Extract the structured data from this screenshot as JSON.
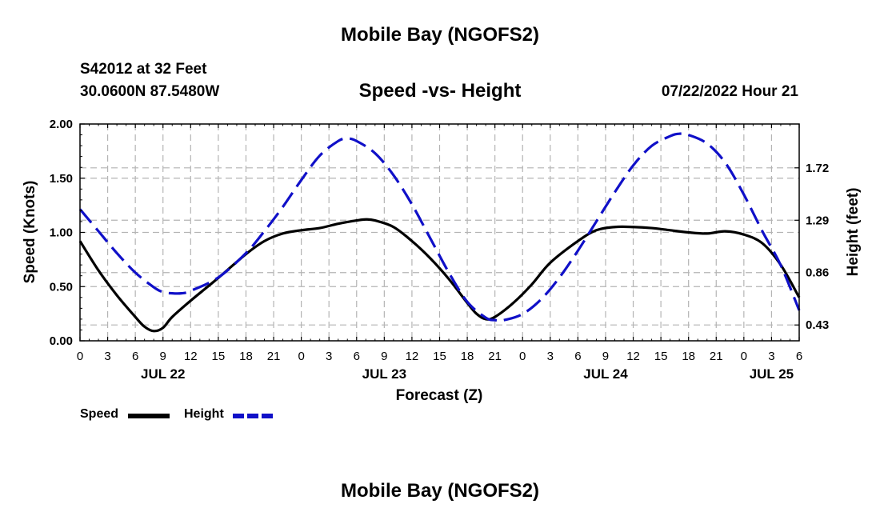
{
  "header": {
    "main_title": "Mobile Bay (NGOFS2)",
    "station": "S42012 at 32 Feet",
    "coords": "30.0600N  87.5480W",
    "subtitle": "Speed -vs- Height",
    "datetime": "07/22/2022 Hour 21",
    "footer_title": "Mobile Bay (NGOFS2)"
  },
  "legend": {
    "speed_label": "Speed",
    "height_label": "Height"
  },
  "colors": {
    "speed": "#000000",
    "height": "#1010c8",
    "grid": "#b4b4b4"
  },
  "chart_data": {
    "type": "line",
    "xlabel": "Forecast (Z)",
    "ylabel": "Speed (Knots)",
    "y2label": "Height (feet)",
    "x_range_hours": [
      0,
      78
    ],
    "ylim": [
      0,
      2.0
    ],
    "y2lim": [
      0.3,
      2.08
    ],
    "yticks": [
      "0.00",
      "0.50",
      "1.00",
      "1.50",
      "2.00"
    ],
    "y2ticks": [
      "0.43",
      "0.86",
      "1.29",
      "1.72"
    ],
    "xtick_labels": [
      "0",
      "3",
      "6",
      "9",
      "12",
      "15",
      "18",
      "21",
      "0",
      "3",
      "6",
      "9",
      "12",
      "15",
      "18",
      "21",
      "0",
      "3",
      "6",
      "9",
      "12",
      "15",
      "18",
      "21",
      "0",
      "3",
      "6"
    ],
    "day_labels": [
      {
        "label": "JUL 22",
        "hour": 9
      },
      {
        "label": "JUL 23",
        "hour": 33
      },
      {
        "label": "JUL 24",
        "hour": 57
      },
      {
        "label": "JUL 25",
        "hour": 75
      }
    ],
    "series": [
      {
        "name": "Speed",
        "axis": "left",
        "points": [
          [
            0,
            0.92
          ],
          [
            2,
            0.65
          ],
          [
            4,
            0.42
          ],
          [
            6,
            0.22
          ],
          [
            7,
            0.13
          ],
          [
            8,
            0.09
          ],
          [
            9,
            0.12
          ],
          [
            10,
            0.22
          ],
          [
            12,
            0.37
          ],
          [
            15,
            0.58
          ],
          [
            18,
            0.8
          ],
          [
            20,
            0.92
          ],
          [
            22,
            0.99
          ],
          [
            24,
            1.02
          ],
          [
            26,
            1.04
          ],
          [
            28,
            1.08
          ],
          [
            30,
            1.11
          ],
          [
            31,
            1.12
          ],
          [
            32,
            1.11
          ],
          [
            34,
            1.05
          ],
          [
            36,
            0.92
          ],
          [
            38,
            0.76
          ],
          [
            40,
            0.57
          ],
          [
            42,
            0.35
          ],
          [
            43,
            0.25
          ],
          [
            44,
            0.2
          ],
          [
            45,
            0.22
          ],
          [
            47,
            0.35
          ],
          [
            49,
            0.52
          ],
          [
            51,
            0.72
          ],
          [
            54,
            0.92
          ],
          [
            56,
            1.02
          ],
          [
            58,
            1.05
          ],
          [
            60,
            1.05
          ],
          [
            62,
            1.04
          ],
          [
            64,
            1.02
          ],
          [
            66,
            1.0
          ],
          [
            68,
            0.99
          ],
          [
            70,
            1.01
          ],
          [
            72,
            0.98
          ],
          [
            74,
            0.9
          ],
          [
            76,
            0.7
          ],
          [
            78,
            0.4
          ]
        ]
      },
      {
        "name": "Height",
        "axis": "right",
        "points": [
          [
            0,
            1.38
          ],
          [
            2,
            1.2
          ],
          [
            4,
            1.02
          ],
          [
            6,
            0.86
          ],
          [
            8,
            0.74
          ],
          [
            9,
            0.7
          ],
          [
            10,
            0.69
          ],
          [
            11,
            0.69
          ],
          [
            12,
            0.71
          ],
          [
            15,
            0.82
          ],
          [
            18,
            1.02
          ],
          [
            20,
            1.2
          ],
          [
            22,
            1.4
          ],
          [
            24,
            1.62
          ],
          [
            26,
            1.82
          ],
          [
            28,
            1.94
          ],
          [
            29,
            1.96
          ],
          [
            30,
            1.94
          ],
          [
            32,
            1.84
          ],
          [
            34,
            1.66
          ],
          [
            36,
            1.42
          ],
          [
            38,
            1.14
          ],
          [
            40,
            0.86
          ],
          [
            42,
            0.62
          ],
          [
            44,
            0.49
          ],
          [
            45,
            0.47
          ],
          [
            46,
            0.47
          ],
          [
            48,
            0.52
          ],
          [
            50,
            0.64
          ],
          [
            52,
            0.82
          ],
          [
            54,
            1.04
          ],
          [
            56,
            1.28
          ],
          [
            58,
            1.52
          ],
          [
            60,
            1.74
          ],
          [
            62,
            1.9
          ],
          [
            64,
            1.98
          ],
          [
            65,
            2.0
          ],
          [
            66,
            1.99
          ],
          [
            68,
            1.92
          ],
          [
            70,
            1.76
          ],
          [
            72,
            1.5
          ],
          [
            74,
            1.2
          ],
          [
            76,
            0.92
          ],
          [
            78,
            0.55
          ]
        ]
      }
    ]
  }
}
